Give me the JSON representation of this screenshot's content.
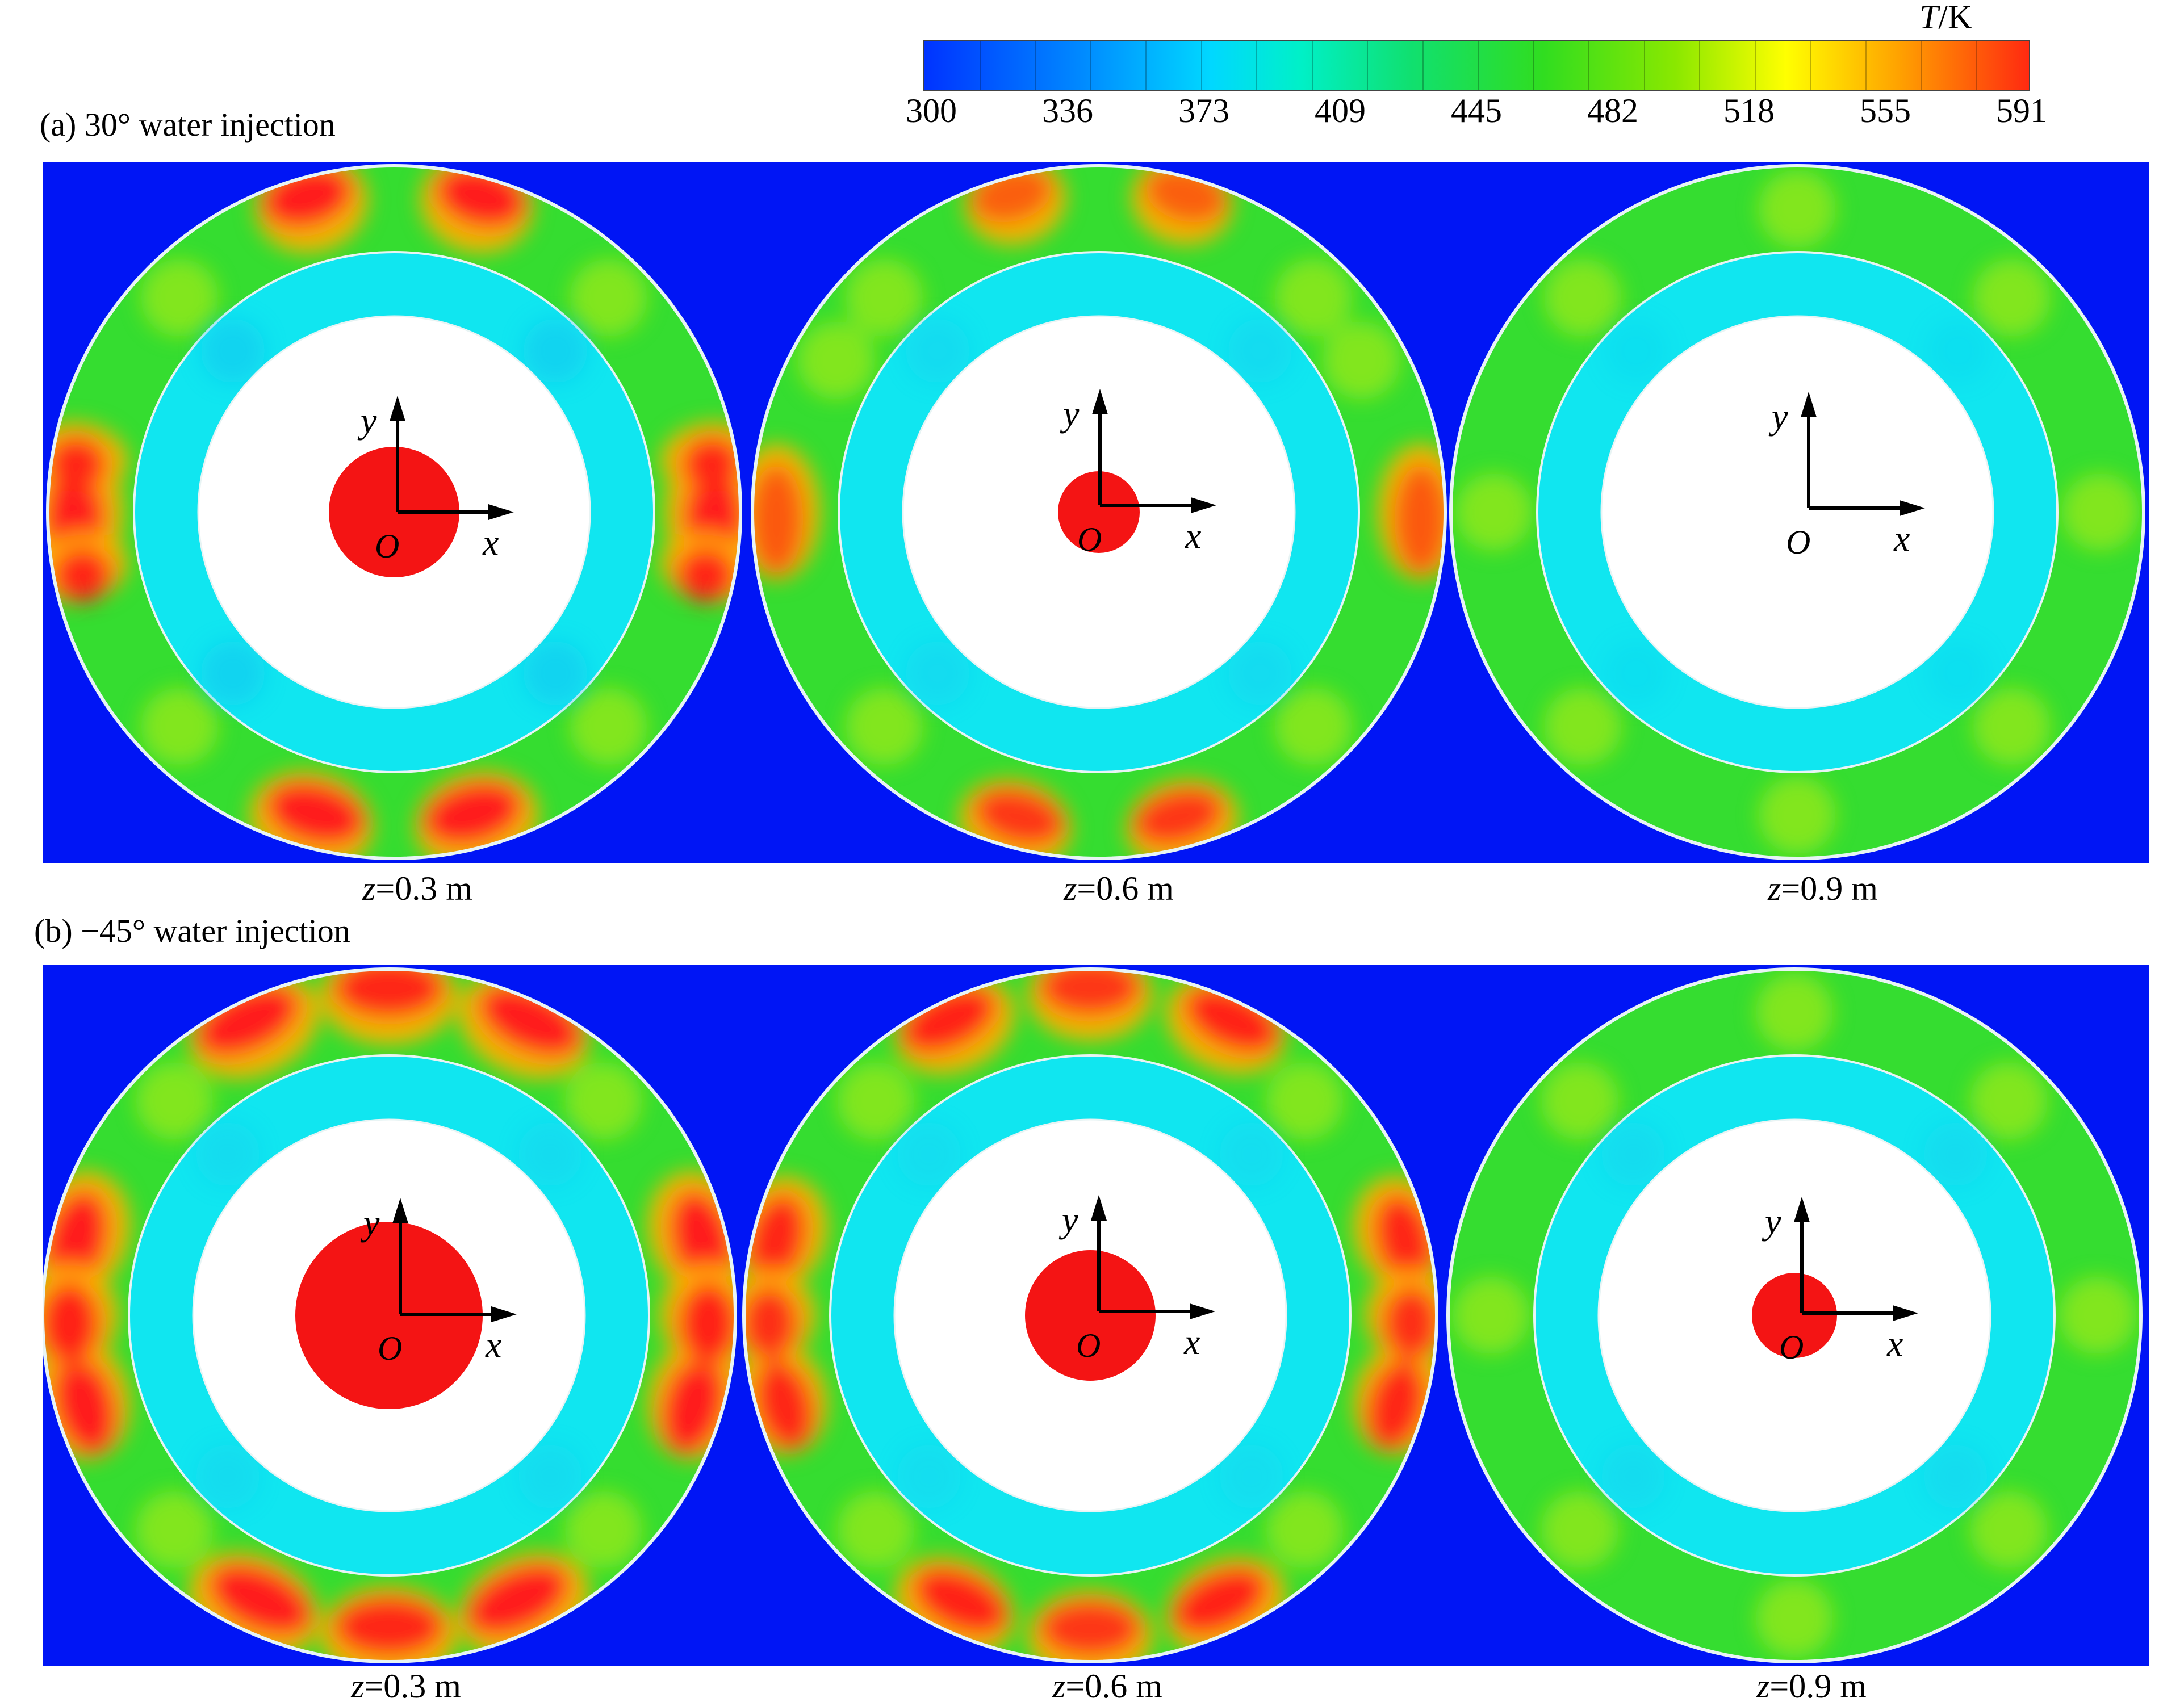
{
  "colorbar": {
    "title_var": "T",
    "title_unit": "/K",
    "ticks": [
      "300",
      "336",
      "373",
      "409",
      "445",
      "482",
      "518",
      "555",
      "591"
    ]
  },
  "panels": [
    {
      "title": "(a) 30° water injection",
      "captions": [
        {
          "var": "z",
          "text": "=0.3 m"
        },
        {
          "var": "z",
          "text": "=0.6 m"
        },
        {
          "var": "z",
          "text": "=0.9 m"
        }
      ]
    },
    {
      "title": "(b) −45° water injection",
      "captions": [
        {
          "var": "z",
          "text": "=0.3 m"
        },
        {
          "var": "z",
          "text": "=0.6 m"
        },
        {
          "var": "z",
          "text": "=0.9 m"
        }
      ]
    }
  ],
  "axis": {
    "x": "x",
    "y": "y",
    "origin": "O"
  },
  "colors": {
    "background": "#0015f5",
    "outer_ring": "#35dd30",
    "inner_ring": "#10e6f0",
    "hot": "#ff1a1a",
    "warm": "#ffb000",
    "ring_border": "#e8f4f4"
  }
}
